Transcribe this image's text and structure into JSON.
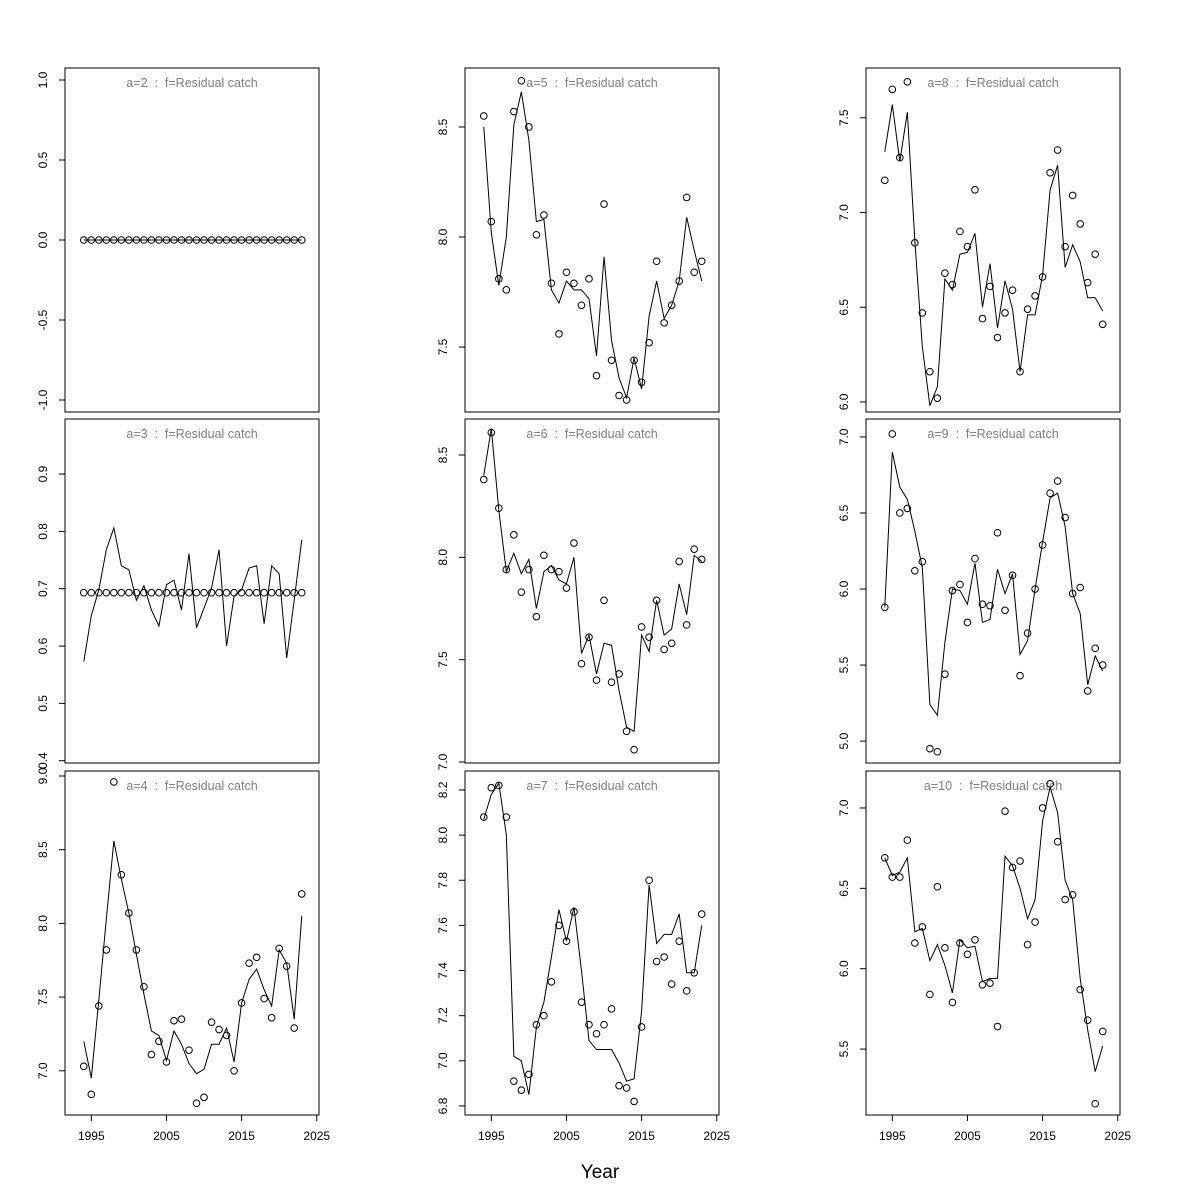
{
  "chart_data": [
    {
      "type": "line",
      "title": "a=2  :  f=Residual catch",
      "x": [
        1994,
        1995,
        1996,
        1997,
        1998,
        1999,
        2000,
        2001,
        2002,
        2003,
        2004,
        2005,
        2006,
        2007,
        2008,
        2009,
        2010,
        2011,
        2012,
        2013,
        2014,
        2015,
        2016,
        2017,
        2018,
        2019,
        2020,
        2021,
        2022,
        2023
      ],
      "xlim": [
        1991.5,
        2025.3
      ],
      "ylim": [
        -1.075,
        1.075
      ],
      "yticks": [
        {
          "value": -1,
          "label": "-1.0"
        },
        -0.5,
        {
          "value": 0,
          "label": "0.0"
        },
        0.5,
        {
          "value": 1,
          "label": "1.0"
        }
      ],
      "series": [
        {
          "style": "points",
          "color": "#000000",
          "values": [
            0,
            0,
            0,
            0,
            0,
            0,
            0,
            0,
            0,
            0,
            0,
            0,
            0,
            0,
            0,
            0,
            0,
            0,
            0,
            0,
            0,
            0,
            0,
            0,
            0,
            0,
            0,
            0,
            0,
            0
          ]
        },
        {
          "style": "line",
          "color": "#000000",
          "values": [
            0,
            0,
            0,
            0,
            0,
            0,
            0,
            0,
            0,
            0,
            0,
            0,
            0,
            0,
            0,
            0,
            0,
            0,
            0,
            0,
            0,
            0,
            0,
            0,
            0,
            0,
            0,
            0,
            0,
            0
          ]
        }
      ]
    },
    {
      "type": "line",
      "title": "a=3  :  f=Residual catch",
      "x": [
        1994,
        1995,
        1996,
        1997,
        1998,
        1999,
        2000,
        2001,
        2002,
        2003,
        2004,
        2005,
        2006,
        2007,
        2008,
        2009,
        2010,
        2011,
        2012,
        2013,
        2014,
        2015,
        2016,
        2017,
        2018,
        2019,
        2020,
        2021,
        2022,
        2023
      ],
      "xlim": [
        1991.5,
        2025.3
      ],
      "ylim": [
        0.396,
        0.996
      ],
      "yticks": [
        0.4,
        0.5,
        0.6,
        0.7,
        0.8,
        0.9
      ],
      "series": [
        {
          "style": "points",
          "color": "#000000",
          "values": [
            0.693,
            0.693,
            0.693,
            0.693,
            0.693,
            0.693,
            0.693,
            0.693,
            0.693,
            0.693,
            0.693,
            0.693,
            0.693,
            0.693,
            0.693,
            0.693,
            0.693,
            0.693,
            0.693,
            0.693,
            0.693,
            0.693,
            0.693,
            0.693,
            0.693,
            0.693,
            0.693,
            0.693,
            0.693,
            0.693
          ]
        },
        {
          "style": "line",
          "color": "#000000",
          "values": [
            0.573,
            0.653,
            0.698,
            0.768,
            0.806,
            0.74,
            0.733,
            0.68,
            0.705,
            0.663,
            0.635,
            0.707,
            0.715,
            0.663,
            0.761,
            0.632,
            0.666,
            0.701,
            0.768,
            0.6,
            0.687,
            0.698,
            0.736,
            0.74,
            0.639,
            0.74,
            0.726,
            0.579,
            0.68,
            0.785
          ]
        }
      ]
    },
    {
      "type": "line",
      "title": "a=4  :  f=Residual catch",
      "x": [
        1994,
        1995,
        1996,
        1997,
        1998,
        1999,
        2000,
        2001,
        2002,
        2003,
        2004,
        2005,
        2006,
        2007,
        2008,
        2009,
        2010,
        2011,
        2012,
        2013,
        2014,
        2015,
        2016,
        2017,
        2018,
        2019,
        2020,
        2021,
        2022,
        2023
      ],
      "xlim": [
        1991.5,
        2025.3
      ],
      "ylim": [
        6.7,
        9.034
      ],
      "yticks": [
        {
          "value": 7,
          "label": "7.0"
        },
        7.5,
        {
          "value": 8,
          "label": "8.0"
        },
        8.5,
        {
          "value": 9,
          "label": "9.0"
        }
      ],
      "xticks": [
        1995,
        2005,
        2015,
        2025
      ],
      "series": [
        {
          "style": "points",
          "color": "#000000",
          "values": [
            7.03,
            6.84,
            7.44,
            7.82,
            8.96,
            8.33,
            8.07,
            7.82,
            7.57,
            7.11,
            7.2,
            7.06,
            7.34,
            7.35,
            7.14,
            6.78,
            6.82,
            7.33,
            7.28,
            7.24,
            7.0,
            7.46,
            7.73,
            7.77,
            7.49,
            7.36,
            7.83,
            7.71,
            7.29,
            8.2
          ]
        },
        {
          "style": "line",
          "color": "#000000",
          "values": [
            7.2,
            6.95,
            7.48,
            8.03,
            8.56,
            8.3,
            8.07,
            7.79,
            7.52,
            7.27,
            7.24,
            7.07,
            7.27,
            7.18,
            7.05,
            6.98,
            7.01,
            7.18,
            7.18,
            7.29,
            7.06,
            7.46,
            7.62,
            7.69,
            7.55,
            7.44,
            7.82,
            7.73,
            7.35,
            8.05
          ]
        }
      ]
    },
    {
      "type": "line",
      "title": "a=5  :  f=Residual catch",
      "x": [
        1994,
        1995,
        1996,
        1997,
        1998,
        1999,
        2000,
        2001,
        2002,
        2003,
        2004,
        2005,
        2006,
        2007,
        2008,
        2009,
        2010,
        2011,
        2012,
        2013,
        2014,
        2015,
        2016,
        2017,
        2018,
        2019,
        2020,
        2021,
        2022,
        2023
      ],
      "xlim": [
        1991.5,
        2025.3
      ],
      "ylim": [
        7.205,
        8.768
      ],
      "yticks": [
        7.5,
        {
          "value": 8,
          "label": "8.0"
        },
        8.5
      ],
      "series": [
        {
          "style": "points",
          "color": "#000000",
          "values": [
            8.55,
            8.07,
            7.81,
            7.76,
            8.57,
            8.71,
            8.5,
            8.01,
            8.1,
            7.79,
            7.56,
            7.84,
            7.79,
            7.69,
            7.81,
            7.37,
            8.15,
            7.44,
            7.28,
            7.26,
            7.44,
            7.34,
            7.52,
            7.89,
            7.61,
            7.69,
            7.8,
            8.18,
            7.84,
            7.89
          ]
        },
        {
          "style": "line",
          "color": "#000000",
          "values": [
            8.5,
            8.02,
            7.78,
            8.0,
            8.51,
            8.66,
            8.44,
            8.07,
            8.08,
            7.76,
            7.7,
            7.8,
            7.76,
            7.76,
            7.72,
            7.46,
            7.91,
            7.53,
            7.36,
            7.27,
            7.45,
            7.31,
            7.64,
            7.8,
            7.63,
            7.69,
            7.8,
            8.09,
            7.94,
            7.8
          ]
        }
      ]
    },
    {
      "type": "line",
      "title": "a=6  :  f=Residual catch",
      "x": [
        1994,
        1995,
        1996,
        1997,
        1998,
        1999,
        2000,
        2001,
        2002,
        2003,
        2004,
        2005,
        2006,
        2007,
        2008,
        2009,
        2010,
        2011,
        2012,
        2013,
        2014,
        2015,
        2016,
        2017,
        2018,
        2019,
        2020,
        2021,
        2022,
        2023
      ],
      "xlim": [
        1991.5,
        2025.3
      ],
      "ylim": [
        6.995,
        8.676
      ],
      "yticks": [
        {
          "value": 7,
          "label": "7.0"
        },
        7.5,
        {
          "value": 8,
          "label": "8.0"
        },
        8.5
      ],
      "series": [
        {
          "style": "points",
          "color": "#000000",
          "values": [
            8.38,
            8.61,
            8.24,
            7.94,
            8.11,
            7.83,
            7.94,
            7.71,
            8.01,
            7.94,
            7.93,
            7.85,
            8.07,
            7.48,
            7.61,
            7.4,
            7.79,
            7.39,
            7.43,
            7.15,
            7.06,
            7.66,
            7.61,
            7.79,
            7.55,
            7.58,
            7.98,
            7.67,
            8.04,
            7.99
          ]
        },
        {
          "style": "line",
          "color": "#000000",
          "values": [
            8.4,
            8.63,
            8.23,
            7.93,
            8.02,
            7.92,
            7.99,
            7.75,
            7.93,
            7.96,
            7.89,
            7.87,
            8.0,
            7.53,
            7.62,
            7.43,
            7.58,
            7.57,
            7.35,
            7.17,
            7.15,
            7.62,
            7.54,
            7.79,
            7.62,
            7.65,
            7.87,
            7.72,
            8.01,
            7.98
          ]
        }
      ]
    },
    {
      "type": "line",
      "title": "a=7  :  f=Residual catch",
      "xlabel": "Year",
      "x": [
        1994,
        1995,
        1996,
        1997,
        1998,
        1999,
        2000,
        2001,
        2002,
        2003,
        2004,
        2005,
        2006,
        2007,
        2008,
        2009,
        2010,
        2011,
        2012,
        2013,
        2014,
        2015,
        2016,
        2017,
        2018,
        2019,
        2020,
        2021,
        2022,
        2023
      ],
      "xlim": [
        1991.5,
        2025.3
      ],
      "ylim": [
        6.76,
        8.284
      ],
      "yticks": [
        6.8,
        {
          "value": 7,
          "label": "7.0"
        },
        7.2,
        7.4,
        7.6,
        7.8,
        {
          "value": 8,
          "label": "8.0"
        },
        8.2
      ],
      "xticks": [
        1995,
        2005,
        2015,
        2025
      ],
      "series": [
        {
          "style": "points",
          "color": "#000000",
          "values": [
            8.08,
            8.21,
            8.22,
            8.08,
            6.91,
            6.87,
            6.94,
            7.16,
            7.2,
            7.35,
            7.6,
            7.53,
            7.66,
            7.26,
            7.16,
            7.12,
            7.16,
            7.23,
            6.89,
            6.88,
            6.82,
            7.15,
            7.8,
            7.44,
            7.46,
            7.34,
            7.53,
            7.31,
            7.39,
            7.65
          ]
        },
        {
          "style": "line",
          "color": "#000000",
          "values": [
            8.07,
            8.18,
            8.23,
            8.0,
            7.02,
            7.0,
            6.85,
            7.15,
            7.26,
            7.46,
            7.67,
            7.53,
            7.68,
            7.4,
            7.09,
            7.05,
            7.05,
            7.05,
            6.99,
            6.91,
            6.92,
            7.22,
            7.78,
            7.52,
            7.56,
            7.56,
            7.65,
            7.39,
            7.39,
            7.6
          ]
        }
      ]
    },
    {
      "type": "line",
      "title": "a=8  :  f=Residual catch",
      "x": [
        1994,
        1995,
        1996,
        1997,
        1998,
        1999,
        2000,
        2001,
        2002,
        2003,
        2004,
        2005,
        2006,
        2007,
        2008,
        2009,
        2010,
        2011,
        2012,
        2013,
        2014,
        2015,
        2016,
        2017,
        2018,
        2019,
        2020,
        2021,
        2022,
        2023
      ],
      "xlim": [
        1991.5,
        2025.3
      ],
      "ylim": [
        5.947,
        7.763
      ],
      "yticks": [
        {
          "value": 6,
          "label": "6.0"
        },
        6.5,
        {
          "value": 7,
          "label": "7.0"
        },
        7.5
      ],
      "series": [
        {
          "style": "points",
          "color": "#000000",
          "values": [
            7.17,
            7.65,
            7.29,
            7.69,
            6.84,
            6.47,
            6.16,
            6.02,
            6.68,
            6.62,
            6.9,
            6.82,
            7.12,
            6.44,
            6.61,
            6.34,
            6.47,
            6.59,
            6.16,
            6.49,
            6.56,
            6.66,
            7.21,
            7.33,
            6.82,
            7.09,
            6.94,
            6.63,
            6.78,
            6.41
          ]
        },
        {
          "style": "line",
          "color": "#000000",
          "values": [
            7.32,
            7.57,
            7.27,
            7.53,
            6.85,
            6.29,
            5.98,
            6.08,
            6.65,
            6.59,
            6.78,
            6.79,
            6.89,
            6.5,
            6.73,
            6.39,
            6.64,
            6.49,
            6.16,
            6.46,
            6.46,
            6.67,
            7.12,
            7.25,
            6.71,
            6.83,
            6.74,
            6.55,
            6.55,
            6.48
          ]
        }
      ]
    },
    {
      "type": "line",
      "title": "a=9  :  f=Residual catch",
      "x": [
        1994,
        1995,
        1996,
        1997,
        1998,
        1999,
        2000,
        2001,
        2002,
        2003,
        2004,
        2005,
        2006,
        2007,
        2008,
        2009,
        2010,
        2011,
        2012,
        2013,
        2014,
        2015,
        2016,
        2017,
        2018,
        2019,
        2020,
        2021,
        2022,
        2023
      ],
      "xlim": [
        1991.5,
        2025.3
      ],
      "ylim": [
        4.856,
        7.118
      ],
      "yticks": [
        {
          "value": 5,
          "label": "5.0"
        },
        5.5,
        {
          "value": 6,
          "label": "6.0"
        },
        6.5,
        {
          "value": 7,
          "label": "7.0"
        }
      ],
      "series": [
        {
          "style": "points",
          "color": "#000000",
          "values": [
            5.88,
            7.02,
            6.5,
            6.53,
            6.12,
            6.18,
            4.95,
            4.93,
            5.44,
            5.99,
            6.03,
            5.78,
            6.2,
            5.9,
            5.89,
            6.37,
            5.86,
            6.09,
            5.43,
            5.71,
            6.0,
            6.29,
            6.63,
            6.71,
            6.47,
            5.97,
            6.01,
            5.33,
            5.61,
            5.5
          ]
        },
        {
          "style": "line",
          "color": "#000000",
          "values": [
            5.88,
            6.9,
            6.67,
            6.59,
            6.38,
            6.14,
            5.24,
            5.17,
            5.65,
            6.0,
            5.99,
            5.9,
            6.17,
            5.78,
            5.8,
            6.13,
            5.97,
            6.1,
            5.57,
            5.66,
            6.0,
            6.31,
            6.6,
            6.63,
            6.41,
            5.97,
            5.84,
            5.37,
            5.56,
            5.46
          ]
        }
      ]
    },
    {
      "type": "line",
      "title": "a=10  :  f=Residual catch",
      "x": [
        1994,
        1995,
        1996,
        1997,
        1998,
        1999,
        2000,
        2001,
        2002,
        2003,
        2004,
        2005,
        2006,
        2007,
        2008,
        2009,
        2010,
        2011,
        2012,
        2013,
        2014,
        2015,
        2016,
        2017,
        2018,
        2019,
        2020,
        2021,
        2022,
        2023
      ],
      "xlim": [
        1991.5,
        2025.3
      ],
      "ylim": [
        5.09,
        7.23
      ],
      "yticks": [
        5.5,
        {
          "value": 6,
          "label": "6.0"
        },
        6.5,
        {
          "value": 7,
          "label": "7.0"
        }
      ],
      "xticks": [
        1995,
        2005,
        2015,
        2025
      ],
      "series": [
        {
          "style": "points",
          "color": "#000000",
          "values": [
            6.69,
            6.57,
            6.57,
            6.8,
            6.16,
            6.26,
            5.84,
            6.51,
            6.13,
            5.79,
            6.16,
            6.09,
            6.18,
            5.9,
            5.91,
            5.64,
            6.98,
            6.63,
            6.67,
            6.15,
            6.29,
            7.0,
            7.15,
            6.79,
            6.43,
            6.46,
            5.87,
            5.68,
            5.16,
            5.61
          ]
        },
        {
          "style": "line",
          "color": "#000000",
          "values": [
            6.69,
            6.58,
            6.6,
            6.69,
            6.23,
            6.25,
            6.05,
            6.15,
            6.02,
            5.85,
            6.18,
            6.13,
            6.14,
            5.92,
            5.94,
            5.94,
            6.7,
            6.64,
            6.5,
            6.31,
            6.43,
            6.92,
            7.13,
            6.97,
            6.55,
            6.43,
            5.94,
            5.62,
            5.36,
            5.52
          ]
        }
      ]
    }
  ]
}
